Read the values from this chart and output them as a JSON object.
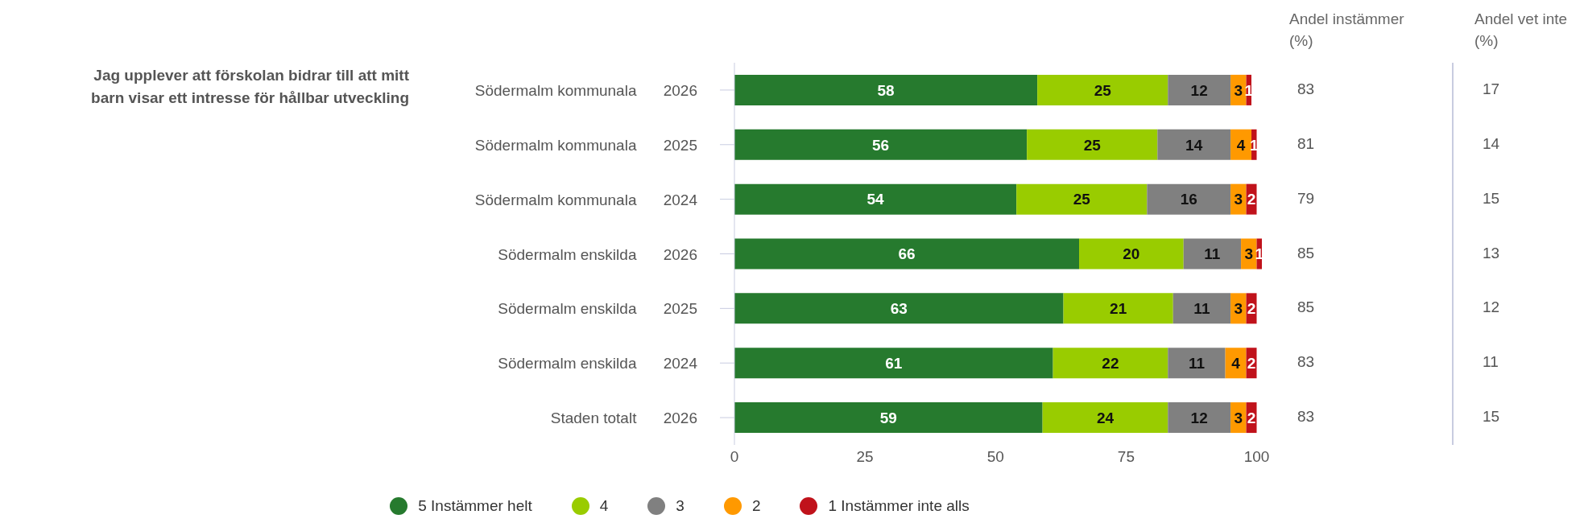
{
  "chart_data": {
    "type": "bar",
    "orientation": "horizontal",
    "stacked": true,
    "title": "Jag upplever att förskolan bidrar till att mitt barn visar ett intresse för hållbar utveckling",
    "categories": [
      "Södermalm kommunala 2026",
      "Södermalm kommunala 2025",
      "Södermalm kommunala 2024",
      "Södermalm enskilda 2026",
      "Södermalm enskilda 2025",
      "Södermalm enskilda 2024",
      "Staden totalt 2026"
    ],
    "series": [
      {
        "name": "5 Instämmer helt",
        "color": "#267a2e",
        "values": [
          58,
          56,
          54,
          66,
          63,
          61,
          59
        ]
      },
      {
        "name": "4",
        "color": "#99cc00",
        "values": [
          25,
          25,
          25,
          20,
          21,
          22,
          24
        ]
      },
      {
        "name": "3",
        "color": "#808080",
        "values": [
          12,
          14,
          16,
          11,
          11,
          11,
          12
        ]
      },
      {
        "name": "2",
        "color": "#ff9900",
        "values": [
          3,
          4,
          3,
          3,
          3,
          4,
          3
        ]
      },
      {
        "name": "1 Instämmer inte alls",
        "color": "#c0121b",
        "values": [
          1,
          1,
          2,
          1,
          2,
          2,
          2
        ]
      }
    ],
    "xlim": [
      0,
      101
    ],
    "xticks": [
      0,
      25,
      50,
      75,
      100
    ],
    "grid": false,
    "legend": "bottom",
    "data_labels": true,
    "annotations": [
      "Andel instämmer (%)",
      "83",
      "81",
      "79",
      "85",
      "85",
      "83",
      "83",
      "Andel vet inte (%)",
      "17",
      "14",
      "15",
      "13",
      "12",
      "11",
      "15"
    ]
  }
}
